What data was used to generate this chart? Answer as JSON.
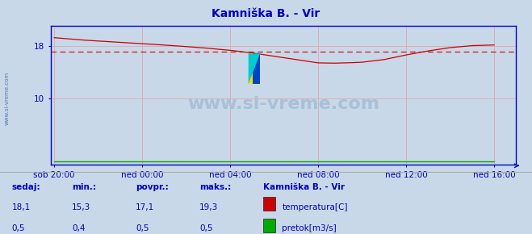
{
  "title": "Kamniška B. - Vir",
  "title_color": "#0000cc",
  "fig_bg_color": "#c8d8e8",
  "plot_bg_color": "#c8d8e8",
  "watermark": "www.si-vreme.com",
  "x_labels": [
    "sob 20:00",
    "ned 00:00",
    "ned 04:00",
    "ned 08:00",
    "ned 12:00",
    "ned 16:00"
  ],
  "x_ticks": [
    0,
    48,
    96,
    144,
    192,
    240
  ],
  "ylim": [
    0,
    21
  ],
  "xlim": [
    -2,
    252
  ],
  "avg_line_value": 17.1,
  "avg_line_color": "#cc0000",
  "grid_color": "#ddaaaa",
  "axis_color": "#0000cc",
  "temp_color": "#cc0000",
  "flow_color": "#00aa00",
  "legend_title": "Kamniška B. - Vir",
  "legend_title_color": "#0000cc",
  "sedaj_label": "sedaj:",
  "min_label": "min.:",
  "povpr_label": "povpr.:",
  "maks_label": "maks.:",
  "temp_sedaj": "18,1",
  "temp_min": "15,3",
  "temp_povpr": "17,1",
  "temp_maks": "19,3",
  "flow_sedaj": "0,5",
  "flow_min": "0,4",
  "flow_povpr": "0,5",
  "flow_maks": "0,5",
  "label_color": "#0000cc",
  "watermark_color": "#a8c0d8",
  "sidebar_text": "www.si-vreme.com",
  "sidebar_color": "#4466aa",
  "keypoints_x": [
    0,
    15,
    30,
    48,
    65,
    80,
    96,
    108,
    120,
    132,
    144,
    152,
    160,
    168,
    180,
    192,
    204,
    216,
    228,
    240
  ],
  "keypoints_y": [
    19.2,
    18.85,
    18.6,
    18.3,
    18.0,
    17.7,
    17.3,
    16.9,
    16.4,
    15.9,
    15.4,
    15.35,
    15.4,
    15.5,
    15.9,
    16.6,
    17.2,
    17.7,
    18.0,
    18.1
  ]
}
